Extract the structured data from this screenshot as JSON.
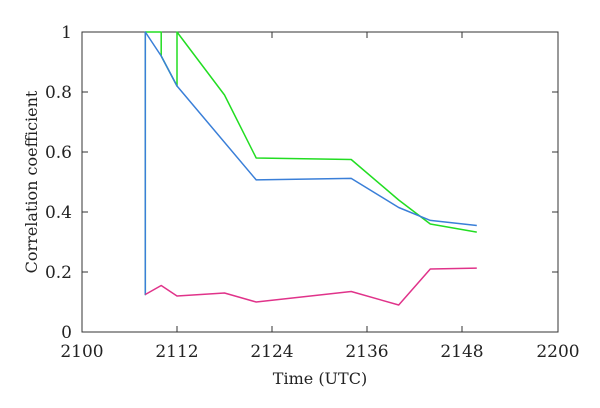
{
  "chart_data": {
    "type": "line",
    "xlabel": "Time (UTC)",
    "ylabel": "Correlation coefficient",
    "xlim": [
      2100,
      2200
    ],
    "ylim": [
      0,
      1
    ],
    "xticks": [
      2100,
      2112,
      2124,
      2136,
      2148,
      2200
    ],
    "yticks": [
      0,
      0.2,
      0.4,
      0.6,
      0.8,
      1
    ],
    "ytick_labels": [
      "0",
      "0.2",
      "0.4",
      "0.6",
      "0.8",
      "1"
    ],
    "grid": false,
    "series": [
      {
        "color": "#22dd22",
        "points": [
          [
            2108,
            1.0
          ],
          [
            2108,
            0.125
          ],
          [
            2108,
            1.0
          ],
          [
            2110,
            1.0
          ],
          [
            2110,
            0.92
          ],
          [
            2112,
            0.82
          ],
          [
            2112,
            1.0
          ],
          [
            2118,
            0.79
          ],
          [
            2122,
            0.58
          ],
          [
            2134,
            0.575
          ],
          [
            2140,
            0.44
          ],
          [
            2144,
            0.36
          ],
          [
            2156,
            0.333
          ]
        ]
      },
      {
        "color": "#3a7fd8",
        "points": [
          [
            2108,
            1.0
          ],
          [
            2108,
            0.125
          ],
          [
            2108,
            1.0
          ],
          [
            2110,
            0.92
          ],
          [
            2112,
            0.82
          ],
          [
            2122,
            0.507
          ],
          [
            2134,
            0.512
          ],
          [
            2140,
            0.415
          ],
          [
            2144,
            0.372
          ],
          [
            2156,
            0.355
          ]
        ]
      },
      {
        "color": "#e0338a",
        "points": [
          [
            2108,
            0.125
          ],
          [
            2110,
            0.155
          ],
          [
            2112,
            0.12
          ],
          [
            2118,
            0.13
          ],
          [
            2122,
            0.1
          ],
          [
            2134,
            0.135
          ],
          [
            2140,
            0.09
          ],
          [
            2144,
            0.21
          ],
          [
            2156,
            0.213
          ]
        ]
      }
    ]
  }
}
